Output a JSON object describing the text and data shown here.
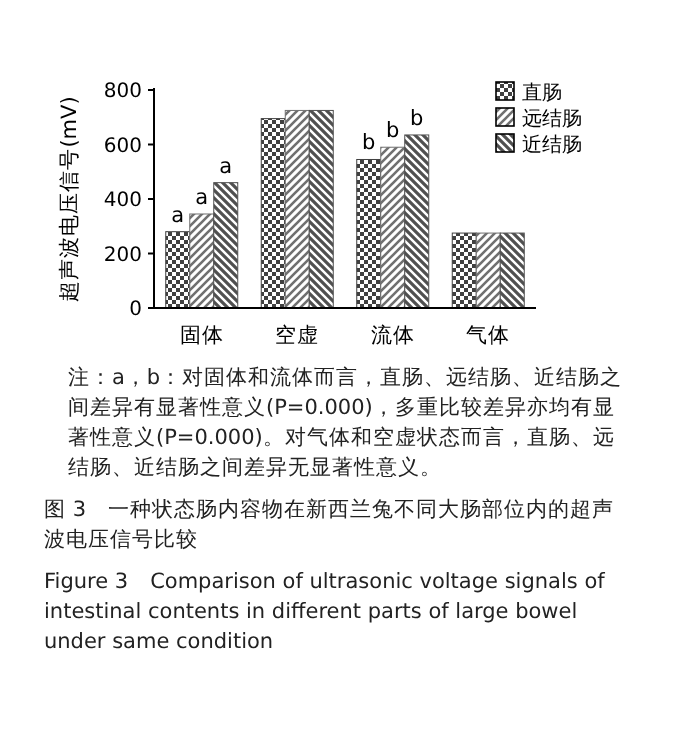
{
  "chart_data": {
    "type": "bar",
    "ylabel": "超声波电压信号(mV)",
    "categories": [
      "固体",
      "空虚",
      "流体",
      "气体"
    ],
    "series": [
      {
        "name": "直肠",
        "color": "#404040",
        "values": [
          280,
          695,
          545,
          275
        ],
        "value_labels": [
          "a",
          null,
          "b",
          null
        ]
      },
      {
        "name": "远结肠",
        "color": "#707070",
        "values": [
          345,
          725,
          590,
          275
        ],
        "value_labels": [
          "a",
          null,
          "b",
          null
        ]
      },
      {
        "name": "近结肠",
        "color": "#505050",
        "values": [
          460,
          725,
          635,
          275
        ],
        "value_labels": [
          "a",
          null,
          "b",
          null
        ]
      }
    ],
    "ylim": [
      0,
      800
    ],
    "yticks": [
      0,
      200,
      400,
      600,
      800
    ],
    "legend": "top right",
    "annotations": [
      "注：a，b：对固体和流体而言，直肠、远结肠、近结肠之间差异有显著性意义(P=0.000)，多重比较差异亦均有显著性意义(P=0.000)。对气体和空虚状态而言，直肠、远结肠、近结肠之间差异无显著性意义。",
      "图 3　一种状态肠内容物在新西兰兔不同大肠部位内的超声波电压信号比较",
      "Figure 3　Comparison of ultrasonic voltage signals of intestinal contents in different parts of large bowel under same condition"
    ]
  }
}
